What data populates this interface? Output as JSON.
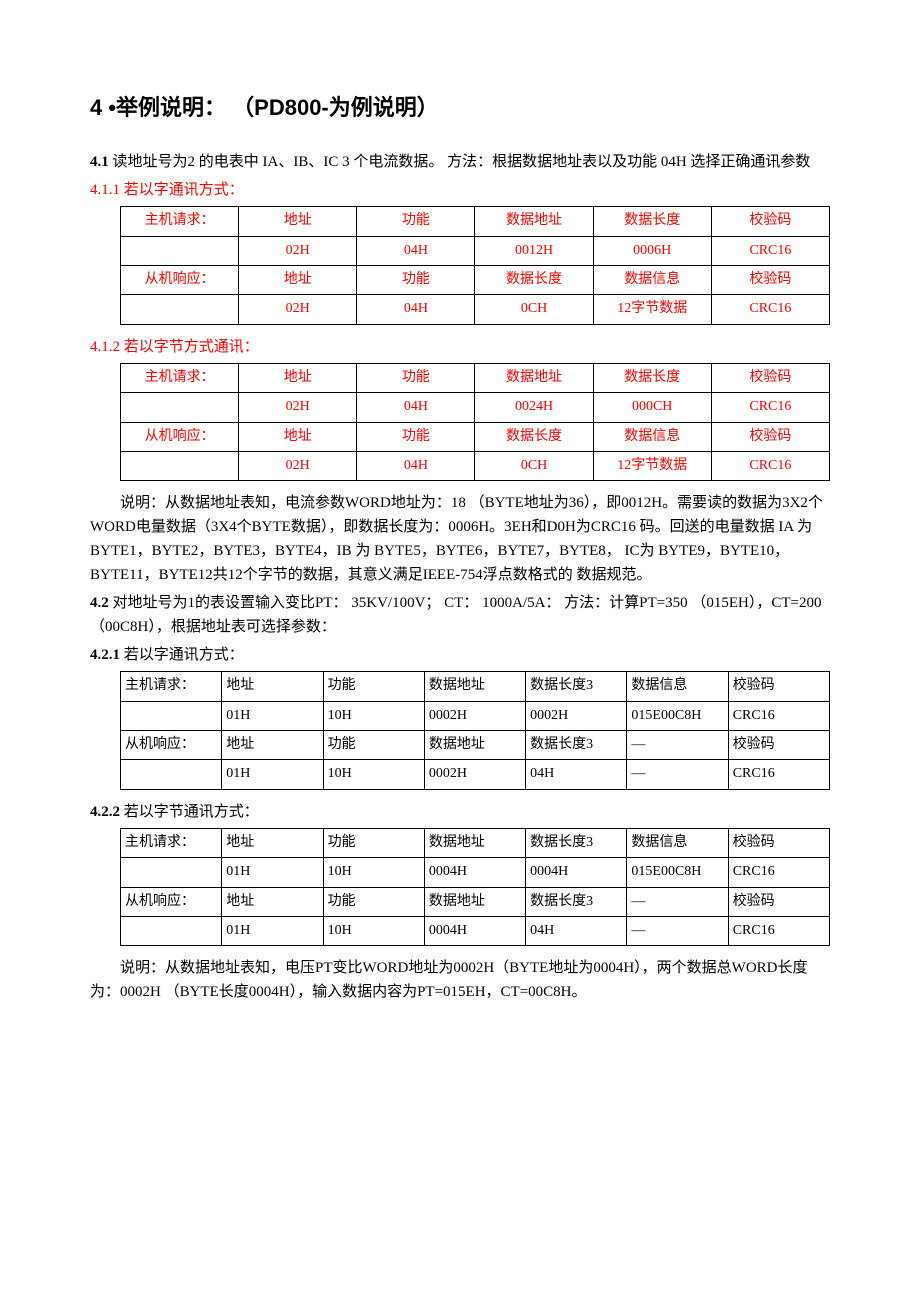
{
  "colors": {
    "text": "#000000",
    "background": "#ffffff",
    "highlight": "#ff0000",
    "border": "#000000"
  },
  "typography": {
    "body_font": "SimSun",
    "heading_font": "SimHei",
    "body_size_pt": 11,
    "heading_size_pt": 16
  },
  "heading": "4 •举例说明： （PD800-为例说明）",
  "s41": {
    "num": "4.1 ",
    "text": "读地址号为2 的电表中 IA、IB、IC 3 个电流数据。 方法：根据数据地址表以及功能 04H 选择正确通讯参数"
  },
  "s411": {
    "title": "4.1.1 若以字通讯方式：",
    "table": {
      "cols": 6,
      "style": "centered_red",
      "rows": [
        [
          "主机请求：",
          "地址",
          "功能",
          "数据地址",
          "数据长度",
          "校验码"
        ],
        [
          "",
          "02H",
          "04H",
          "0012H",
          "0006H",
          "CRC16"
        ],
        [
          "从机响应：",
          "地址",
          "功能",
          "数据长度",
          "数据信息",
          "校验码"
        ],
        [
          "",
          "02H",
          "04H",
          "0CH",
          "12字节数据",
          "CRC16"
        ]
      ]
    }
  },
  "s412": {
    "title": "4.1.2 若以字节方式通讯：",
    "table": {
      "cols": 6,
      "style": "centered_red",
      "rows": [
        [
          "主机请求：",
          "地址",
          "功能",
          "数据地址",
          "数据长度",
          "校验码"
        ],
        [
          "",
          "02H",
          "04H",
          "0024H",
          "000CH",
          "CRC16"
        ],
        [
          "从机响应：",
          "地址",
          "功能",
          "数据长度",
          "数据信息",
          "校验码"
        ],
        [
          "",
          "02H",
          "04H",
          "0CH",
          "12字节数据",
          "CRC16"
        ]
      ]
    }
  },
  "explain1": "说明：从数据地址表知，电流参数WORD地址为：18 （BYTE地址为36），即0012H。需要读的数据为3X2个WORD电量数据（3X4个BYTE数据），即数据长度为：0006H。3EH和D0H为CRC16 码。回送的电量数据 IA 为 BYTE1，BYTE2，BYTE3，BYTE4，IB 为 BYTE5，BYTE6，BYTE7，BYTE8， IC为 BYTE9，BYTE10，BYTE11，BYTE12共12个字节的数据，其意义满足IEEE-754浮点数格式的 数据规范。",
  "s42": {
    "num": "4.2 ",
    "text": "对地址号为1的表设置输入变比PT： 35KV/100V； CT： 1000A/5A： 方法：计算PT=350 （015EH），CT=200 （00C8H），根据地址表可选择参数："
  },
  "s421": {
    "title_num": "4.2.1 ",
    "title_text": "若以字通讯方式：",
    "table": {
      "cols": 7,
      "style": "left_black",
      "rows": [
        [
          "主机请求：",
          "地址",
          "功能",
          "数据地址",
          "数据长度3",
          "数据信息",
          "校验码"
        ],
        [
          "",
          "01H",
          "10H",
          "0002H",
          "0002H",
          "015E00C8H",
          "CRC16"
        ],
        [
          "从机响应：",
          "地址",
          "功能",
          "数据地址",
          "数据长度3",
          "—",
          "校验码"
        ],
        [
          "",
          "01H",
          "10H",
          "0002H",
          "04H",
          "—",
          "CRC16"
        ]
      ]
    }
  },
  "s422": {
    "title_num": "4.2.2 ",
    "title_text": "若以字节通讯方式：",
    "table": {
      "cols": 7,
      "style": "left_black",
      "rows": [
        [
          "主机请求：",
          "地址",
          "功能",
          "数据地址",
          "数据长度3",
          "数据信息",
          "校验码"
        ],
        [
          "",
          "01H",
          "10H",
          "0004H",
          "0004H",
          "015E00C8H",
          "CRC16"
        ],
        [
          "从机响应：",
          "地址",
          "功能",
          "数据地址",
          "数据长度3",
          "—",
          "校验码"
        ],
        [
          "",
          "01H",
          "10H",
          "0004H",
          "04H",
          "—",
          "CRC16"
        ]
      ]
    }
  },
  "explain2": "说明：从数据地址表知，电压PT变比WORD地址为0002H（BYTE地址为0004H），两个数据总WORD长度为：0002H （BYTE长度0004H），输入数据内容为PT=015EH，CT=00C8H。"
}
